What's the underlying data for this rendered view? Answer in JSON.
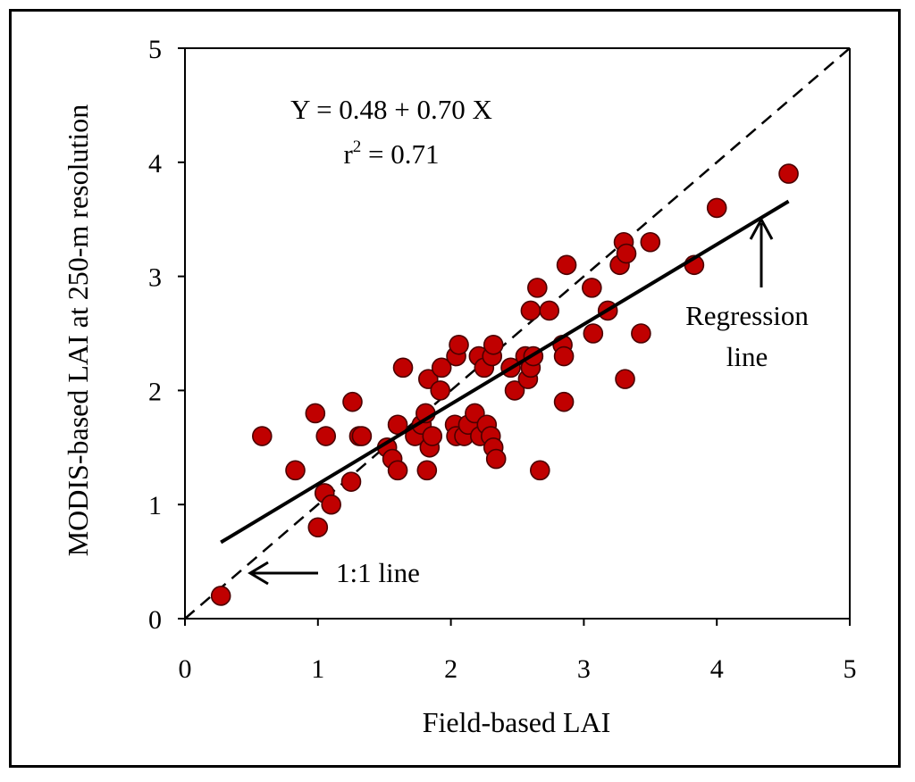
{
  "chart_data": {
    "type": "scatter",
    "title": "",
    "xlabel": "Field-based LAI",
    "ylabel": "MODIS-based LAI at 250-m resolution",
    "xlim": [
      0,
      5
    ],
    "ylim": [
      0,
      5
    ],
    "x_ticks": [
      "0",
      "1",
      "2",
      "3",
      "4",
      "5"
    ],
    "y_ticks": [
      "0",
      "1",
      "2",
      "3",
      "4",
      "5"
    ],
    "grid": false,
    "marker_color": "#c00000",
    "points": [
      [
        0.27,
        0.2
      ],
      [
        0.58,
        1.6
      ],
      [
        0.83,
        1.3
      ],
      [
        0.98,
        1.8
      ],
      [
        1.0,
        0.8
      ],
      [
        1.05,
        1.1
      ],
      [
        1.06,
        1.6
      ],
      [
        1.1,
        1.0
      ],
      [
        1.25,
        1.2
      ],
      [
        1.26,
        1.9
      ],
      [
        1.31,
        1.6
      ],
      [
        1.33,
        1.6
      ],
      [
        1.52,
        1.5
      ],
      [
        1.56,
        1.4
      ],
      [
        1.6,
        1.3
      ],
      [
        1.6,
        1.7
      ],
      [
        1.64,
        2.2
      ],
      [
        1.73,
        1.6
      ],
      [
        1.78,
        1.7
      ],
      [
        1.81,
        1.8
      ],
      [
        1.82,
        1.3
      ],
      [
        1.83,
        2.1
      ],
      [
        1.84,
        1.5
      ],
      [
        1.86,
        1.6
      ],
      [
        1.92,
        2.0
      ],
      [
        1.93,
        2.2
      ],
      [
        2.03,
        1.7
      ],
      [
        2.04,
        1.6
      ],
      [
        2.04,
        2.3
      ],
      [
        2.06,
        2.4
      ],
      [
        2.1,
        1.6
      ],
      [
        2.13,
        1.7
      ],
      [
        2.18,
        1.8
      ],
      [
        2.21,
        2.3
      ],
      [
        2.22,
        1.6
      ],
      [
        2.25,
        2.2
      ],
      [
        2.27,
        1.7
      ],
      [
        2.3,
        1.6
      ],
      [
        2.31,
        2.3
      ],
      [
        2.32,
        1.5
      ],
      [
        2.32,
        2.4
      ],
      [
        2.34,
        1.4
      ],
      [
        2.45,
        2.2
      ],
      [
        2.48,
        2.0
      ],
      [
        2.56,
        2.3
      ],
      [
        2.58,
        2.1
      ],
      [
        2.6,
        2.2
      ],
      [
        2.6,
        2.7
      ],
      [
        2.62,
        2.3
      ],
      [
        2.65,
        2.9
      ],
      [
        2.67,
        1.3
      ],
      [
        2.74,
        2.7
      ],
      [
        2.84,
        2.4
      ],
      [
        2.85,
        2.3
      ],
      [
        2.85,
        1.9
      ],
      [
        2.87,
        3.1
      ],
      [
        3.06,
        2.9
      ],
      [
        3.07,
        2.5
      ],
      [
        3.18,
        2.7
      ],
      [
        3.27,
        3.1
      ],
      [
        3.3,
        3.3
      ],
      [
        3.31,
        2.1
      ],
      [
        3.32,
        3.2
      ],
      [
        3.43,
        2.5
      ],
      [
        3.5,
        3.3
      ],
      [
        3.83,
        3.1
      ],
      [
        4.0,
        3.6
      ],
      [
        4.54,
        3.9
      ]
    ],
    "regression": {
      "intercept": 0.48,
      "slope": 0.7,
      "x_range": [
        0.27,
        4.54
      ]
    },
    "one_to_one": {
      "x_range": [
        0,
        5
      ]
    }
  },
  "annotations": {
    "equation": "Y = 0.48 +  0.70 X",
    "r2_prefix": "r",
    "r2_sup": "2",
    "r2_suffix": " = 0.71",
    "regression_label_line1": "Regression",
    "regression_label_line2": "line",
    "one_to_one_label": "1:1 line"
  }
}
